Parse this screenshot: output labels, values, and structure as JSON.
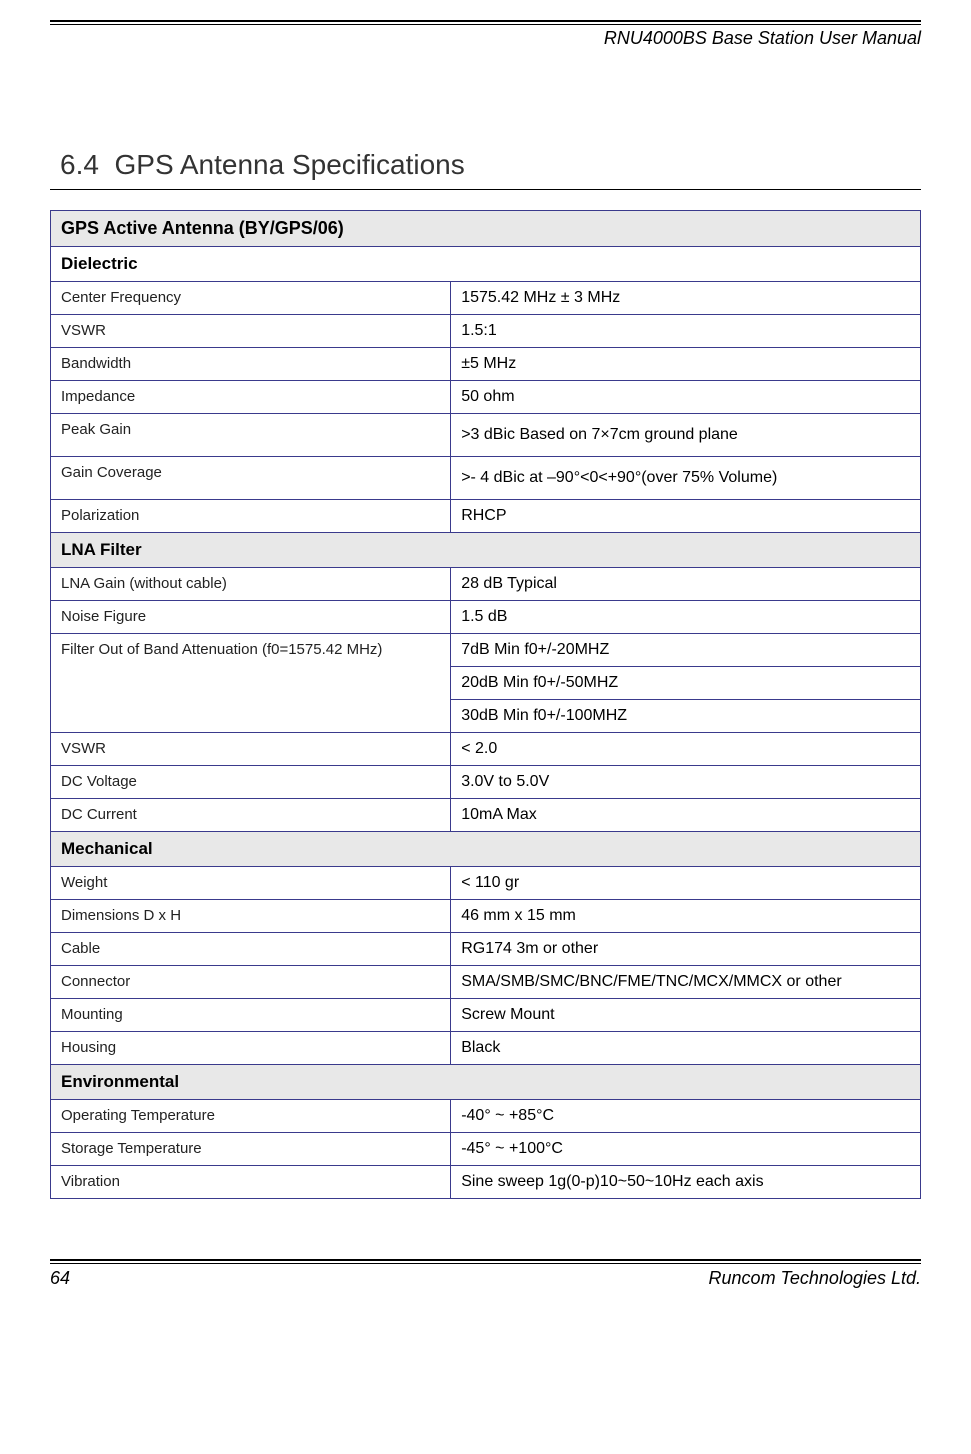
{
  "header": {
    "doc_title": "RNU4000BS Base Station User Manual"
  },
  "section": {
    "number": "6.4",
    "title": "GPS Antenna Specifications"
  },
  "table": {
    "main_title": "GPS Active Antenna (BY/GPS/06)",
    "groups": [
      {
        "header": "Dielectric",
        "header_bg": "#ffffff",
        "rows": [
          {
            "label": "Center Frequency",
            "value": "1575.42 MHz ± 3 MHz"
          },
          {
            "label": "VSWR",
            "value": "1.5:1"
          },
          {
            "label": "Bandwidth",
            "value": "±5 MHz"
          },
          {
            "label": "Impedance",
            "value": "50 ohm"
          },
          {
            "label": "Peak Gain",
            "value": ">3 dBic  Based on 7×7cm ground plane",
            "tall": true
          },
          {
            "label": "Gain Coverage",
            "value": ">- 4 dBic at –90°<0<+90°(over 75% Volume)",
            "tall": true
          },
          {
            "label": "Polarization",
            "value": "RHCP"
          }
        ]
      },
      {
        "header": "LNA Filter",
        "header_bg": "#e8e8e8",
        "rows": [
          {
            "label": "LNA Gain (without cable)",
            "value": "28 dB Typical"
          },
          {
            "label": "Noise Figure",
            "value": "1.5 dB"
          },
          {
            "label": "Filter Out of Band Attenuation (f0=1575.42 MHz)",
            "value": "7dB Min f0+/-20MHZ",
            "rowspan": 3
          },
          {
            "value_only": true,
            "value": "20dB Min f0+/-50MHZ"
          },
          {
            "value_only": true,
            "value": "30dB Min f0+/-100MHZ"
          },
          {
            "label": "VSWR",
            "value": "< 2.0"
          },
          {
            "label": "DC Voltage",
            "value": "3.0V to 5.0V"
          },
          {
            "label": "DC Current",
            "value": "10mA Max"
          }
        ]
      },
      {
        "header": "Mechanical",
        "header_bg": "#e8e8e8",
        "rows": [
          {
            "label": "Weight",
            "value": "< 110 gr"
          },
          {
            "label": "Dimensions D x H",
            "value": "46 mm x 15 mm"
          },
          {
            "label": "Cable",
            "value": "RG174 3m or other"
          },
          {
            "label": "Connector",
            "value": "SMA/SMB/SMC/BNC/FME/TNC/MCX/MMCX or other"
          },
          {
            "label": "Mounting",
            "value": "Screw Mount"
          },
          {
            "label": "Housing",
            "value": "Black"
          }
        ]
      },
      {
        "header": "Environmental",
        "header_bg": "#e8e8e8",
        "rows": [
          {
            "label": "Operating Temperature",
            "value": "-40° ~ +85°C"
          },
          {
            "label": "Storage Temperature",
            "value": "-45° ~ +100°C"
          },
          {
            "label": "Vibration",
            "value": "Sine sweep 1g(0-p)10~50~10Hz each axis"
          }
        ]
      }
    ]
  },
  "footer": {
    "page_number": "64",
    "company": "Runcom Technologies Ltd."
  },
  "styling": {
    "border_color": "#3a3a8c",
    "section_bg": "#e8e8e8",
    "page_bg": "#ffffff",
    "text_color": "#000000",
    "title_fontsize": 28,
    "header_fontsize": 18,
    "table_title_fontsize": 18,
    "section_header_fontsize": 17,
    "label_fontsize": 15,
    "value_fontsize": 16,
    "label_col_width_pct": 46
  }
}
